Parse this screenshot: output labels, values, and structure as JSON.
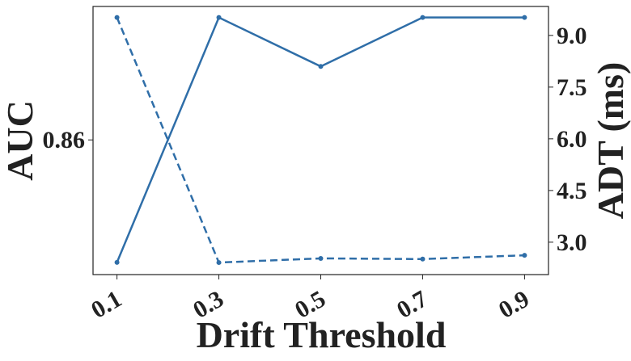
{
  "chart_data": {
    "type": "line",
    "x_label": "Drift Threshold",
    "y_label": "AUC",
    "y2_label": "ADT (ms)",
    "x": [
      0.1,
      0.3,
      0.5,
      0.7,
      0.9
    ],
    "xlim": [
      0.053,
      0.947
    ],
    "xticks": [
      0.1,
      0.3,
      0.5,
      0.7,
      0.9
    ],
    "ylim": [
      0.849,
      0.8709
    ],
    "yticks": [
      0.86
    ],
    "y2lim": [
      2.06,
      9.84
    ],
    "y2ticks": [
      {
        "value": 3.0,
        "label": "3.0"
      },
      4.5,
      {
        "value": 6.0,
        "label": "6.0"
      },
      7.5,
      {
        "value": 9.0,
        "label": "9.0"
      }
    ],
    "series": [
      {
        "name": "AUC",
        "color": "#2f6ea8",
        "dash": false,
        "values": [
          0.85,
          0.87,
          0.866,
          0.87,
          0.87
        ]
      },
      {
        "name": "ADT",
        "color": "#2f6ea8",
        "dash": true,
        "axis": "y2",
        "values": [
          9.52,
          2.41,
          2.53,
          2.51,
          2.62
        ]
      }
    ]
  }
}
